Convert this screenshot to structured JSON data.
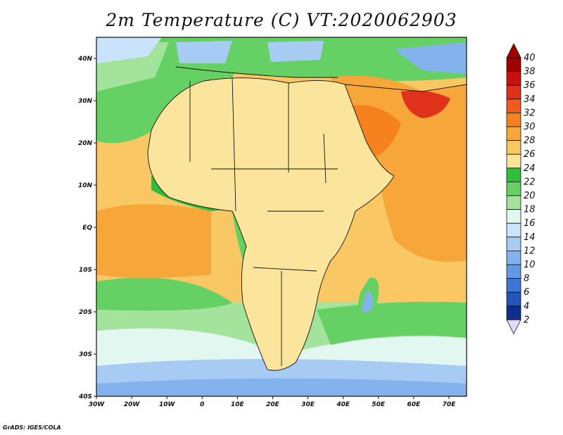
{
  "title": "2m Temperature (C) VT:2020062903",
  "credit": "GrADS: IGES/COLA",
  "map": {
    "lon_labels": [
      "30W",
      "20W",
      "10W",
      "0",
      "10E",
      "20E",
      "30E",
      "40E",
      "50E",
      "60E",
      "70E"
    ],
    "lat_labels": [
      "40N",
      "30N",
      "20N",
      "10N",
      "EQ",
      "10S",
      "20S",
      "30S",
      "40S"
    ]
  },
  "colorbar": {
    "labels": [
      "40",
      "38",
      "36",
      "34",
      "32",
      "30",
      "28",
      "26",
      "24",
      "22",
      "20",
      "18",
      "16",
      "14",
      "12",
      "10",
      "8",
      "6",
      "4",
      "2"
    ],
    "colors": [
      "#a00000",
      "#c81010",
      "#e0321a",
      "#f05a1e",
      "#f5821e",
      "#f7a73a",
      "#f9c865",
      "#fbe49b",
      "#2fbf3a",
      "#65d164",
      "#a3e39c",
      "#e1f7ef",
      "#c8e3fa",
      "#a7cbf3",
      "#84b2ec",
      "#6298e4",
      "#3d77d6",
      "#2256bd",
      "#0d2e8f",
      "#dcdcf8"
    ],
    "top_arrow_color": "#a00000",
    "bottom_arrow_color": "#dcdcf8"
  }
}
